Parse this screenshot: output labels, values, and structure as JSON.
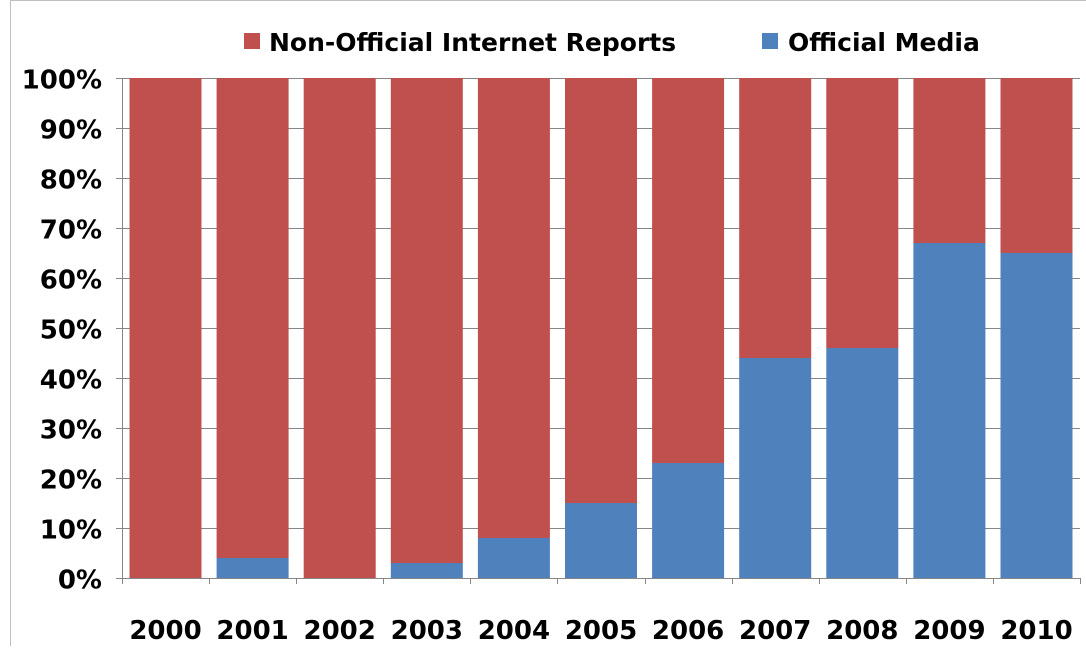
{
  "chart_data": {
    "type": "bar",
    "stacked": "percent",
    "categories": [
      "2000",
      "2001",
      "2002",
      "2003",
      "2004",
      "2005",
      "2006",
      "2007",
      "2008",
      "2009",
      "2010"
    ],
    "series": [
      {
        "name": "Official Media",
        "color": "#4F81BD",
        "values": [
          0,
          4,
          0,
          3,
          8,
          15,
          23,
          44,
          46,
          67,
          65
        ]
      },
      {
        "name": "Non-Official Internet Reports",
        "color": "#C0504D",
        "values": [
          100,
          96,
          100,
          97,
          92,
          85,
          77,
          56,
          54,
          33,
          35
        ]
      }
    ],
    "y_ticks": [
      "0%",
      "10%",
      "20%",
      "30%",
      "40%",
      "50%",
      "60%",
      "70%",
      "80%",
      "90%",
      "100%"
    ],
    "ylim": [
      0,
      100
    ],
    "grid": true,
    "legend_position": "top",
    "legend": [
      {
        "label": "Non-Official Internet Reports",
        "color": "#C0504D"
      },
      {
        "label": "Official Media",
        "color": "#4F81BD"
      }
    ]
  }
}
